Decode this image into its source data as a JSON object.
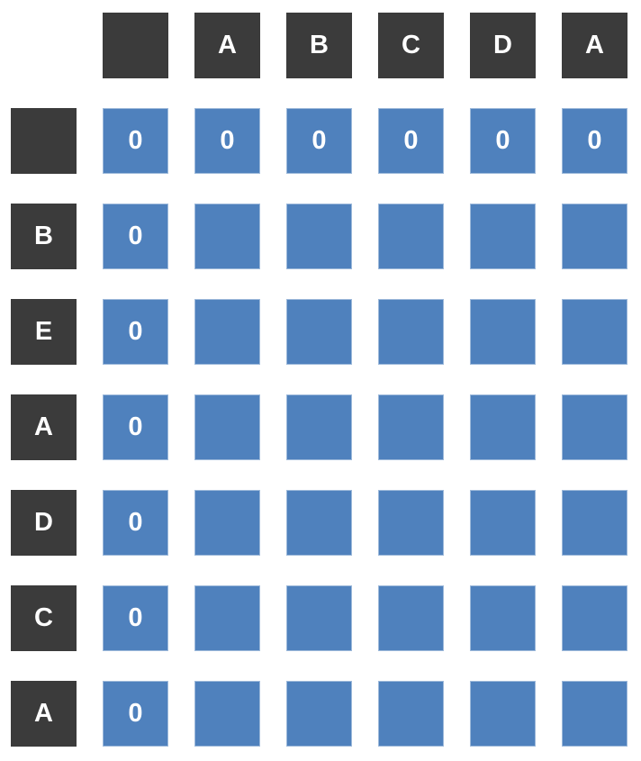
{
  "colors": {
    "page_bg": "#ffffff",
    "header_bg": "#3b3b3b",
    "cell_bg": "#4f81bd",
    "cell_border": "#9db9da",
    "text": "#ffffff"
  },
  "matrix": {
    "col_headers": [
      "",
      "A",
      "B",
      "C",
      "D",
      "A"
    ],
    "row_headers": [
      "",
      "B",
      "E",
      "A",
      "D",
      "C",
      "A"
    ],
    "values": [
      [
        "0",
        "0",
        "0",
        "0",
        "0",
        "0"
      ],
      [
        "0",
        "",
        "",
        "",
        "",
        ""
      ],
      [
        "0",
        "",
        "",
        "",
        "",
        ""
      ],
      [
        "0",
        "",
        "",
        "",
        "",
        ""
      ],
      [
        "0",
        "",
        "",
        "",
        "",
        ""
      ],
      [
        "0",
        "",
        "",
        "",
        "",
        ""
      ],
      [
        "0",
        "",
        "",
        "",
        "",
        ""
      ]
    ]
  }
}
